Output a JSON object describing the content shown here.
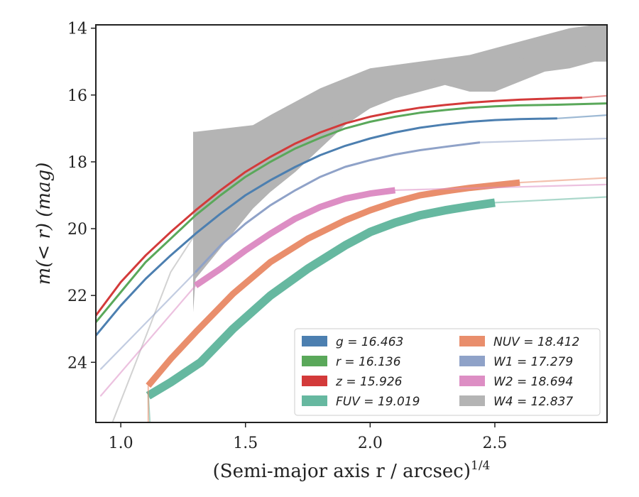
{
  "chart_data": {
    "type": "line",
    "xlabel": "(Semi-major axis r / arcsec)",
    "xlabel_superscript": "1/4",
    "ylabel": "m(< r) (mag)",
    "xlim": [
      0.9,
      2.95
    ],
    "ylim": [
      25.8,
      13.9
    ],
    "y_inverted": true,
    "x_ticks": [
      1.0,
      1.5,
      2.0,
      2.5
    ],
    "x_tick_labels": [
      "1.0",
      "1.5",
      "2.0",
      "2.5"
    ],
    "y_ticks": [
      14,
      16,
      18,
      20,
      22,
      24
    ],
    "y_tick_labels": [
      "14",
      "16",
      "18",
      "20",
      "22",
      "24"
    ],
    "grid": false,
    "legend_placement": "lower-right",
    "series": [
      {
        "name": "g",
        "legend_label": "g = 16.463",
        "color": "#4c7fb0",
        "x": [
          0.9,
          1.0,
          1.1,
          1.2,
          1.3,
          1.4,
          1.5,
          1.6,
          1.7,
          1.8,
          1.9,
          2.0,
          2.1,
          2.2,
          2.3,
          2.4,
          2.5,
          2.6,
          2.75
        ],
        "y": [
          23.2,
          22.3,
          21.5,
          20.8,
          20.15,
          19.55,
          19.0,
          18.55,
          18.15,
          17.8,
          17.52,
          17.3,
          17.12,
          16.98,
          16.88,
          16.8,
          16.75,
          16.72,
          16.7
        ],
        "halo_x_end": 2.95,
        "halo_y_end": 16.6
      },
      {
        "name": "r",
        "legend_label": "r = 16.136",
        "color": "#5aa85a",
        "x": [
          0.9,
          1.0,
          1.1,
          1.2,
          1.3,
          1.4,
          1.5,
          1.6,
          1.7,
          1.8,
          1.9,
          2.0,
          2.1,
          2.2,
          2.3,
          2.4,
          2.5,
          2.6,
          2.75,
          2.95
        ],
        "y": [
          22.8,
          21.9,
          21.0,
          20.3,
          19.6,
          19.0,
          18.45,
          18.0,
          17.6,
          17.28,
          17.0,
          16.8,
          16.65,
          16.53,
          16.45,
          16.38,
          16.34,
          16.31,
          16.29,
          16.25
        ],
        "halo_x_end": 2.95,
        "halo_y_end": 16.2
      },
      {
        "name": "z",
        "legend_label": "z = 15.926",
        "color": "#d33a3a",
        "x": [
          0.9,
          1.0,
          1.1,
          1.2,
          1.3,
          1.4,
          1.5,
          1.6,
          1.7,
          1.8,
          1.9,
          2.0,
          2.1,
          2.2,
          2.3,
          2.4,
          2.5,
          2.6,
          2.75,
          2.85
        ],
        "y": [
          22.6,
          21.6,
          20.8,
          20.1,
          19.45,
          18.85,
          18.3,
          17.85,
          17.45,
          17.12,
          16.85,
          16.65,
          16.5,
          16.38,
          16.3,
          16.23,
          16.18,
          16.14,
          16.1,
          16.08
        ],
        "halo_x_end": 2.95,
        "halo_y_end": 16.02
      },
      {
        "name": "FUV",
        "legend_label": "FUV = 19.019",
        "color": "#66b8a0",
        "x": [
          1.11,
          1.2,
          1.32,
          1.45,
          1.6,
          1.75,
          1.9,
          2.0,
          2.1,
          2.2,
          2.3,
          2.4,
          2.5
        ],
        "y": [
          25.0,
          24.6,
          24.0,
          23.0,
          22.0,
          21.2,
          20.5,
          20.1,
          19.82,
          19.6,
          19.45,
          19.33,
          19.22
        ],
        "halo_x_end": 2.95,
        "halo_y_end": 19.05
      },
      {
        "name": "NUV",
        "legend_label": "NUV = 18.412",
        "color": "#e98e6c",
        "x": [
          1.11,
          1.2,
          1.3,
          1.45,
          1.6,
          1.75,
          1.9,
          2.0,
          2.1,
          2.2,
          2.3,
          2.4,
          2.5,
          2.6
        ],
        "y": [
          24.7,
          23.9,
          23.1,
          21.95,
          21.0,
          20.3,
          19.75,
          19.45,
          19.2,
          19.0,
          18.88,
          18.78,
          18.7,
          18.62
        ],
        "halo_x_end": 2.95,
        "halo_y_end": 18.48
      },
      {
        "name": "W1",
        "legend_label": "W1 = 17.279",
        "color": "#8fa2c8",
        "x": [
          1.3,
          1.4,
          1.5,
          1.6,
          1.7,
          1.8,
          1.9,
          2.0,
          2.1,
          2.2,
          2.3,
          2.44
        ],
        "y": [
          21.3,
          20.5,
          19.85,
          19.3,
          18.85,
          18.45,
          18.15,
          17.95,
          17.78,
          17.65,
          17.55,
          17.42
        ],
        "halo_x_end": 2.95,
        "halo_y_end": 17.3
      },
      {
        "name": "W2",
        "legend_label": "W2 = 18.694",
        "color": "#dd8ec4",
        "x": [
          1.3,
          1.4,
          1.5,
          1.6,
          1.7,
          1.8,
          1.9,
          2.0,
          2.1
        ],
        "y": [
          21.7,
          21.2,
          20.65,
          20.15,
          19.7,
          19.35,
          19.1,
          18.95,
          18.85
        ],
        "halo_x_end": 2.95,
        "halo_y_end": 18.68
      },
      {
        "name": "W4",
        "legend_label": "W4 = 12.837",
        "color": "#b4b4b4",
        "band_x": [
          1.29,
          1.3,
          1.53,
          1.6,
          1.7,
          1.8,
          1.9,
          2.0,
          2.1,
          2.2,
          2.3,
          2.4,
          2.5,
          2.6,
          2.7,
          2.8,
          2.9,
          2.95
        ],
        "band_upper": [
          17.1,
          17.1,
          16.9,
          16.6,
          16.2,
          15.8,
          15.5,
          15.2,
          15.1,
          15.0,
          14.9,
          14.8,
          14.6,
          14.4,
          14.2,
          14.0,
          13.9,
          13.9
        ],
        "band_lower": [
          22.5,
          21.5,
          19.4,
          18.9,
          18.3,
          17.6,
          16.9,
          16.4,
          16.1,
          15.9,
          15.7,
          15.9,
          15.9,
          15.6,
          15.3,
          15.2,
          15.0,
          15.0
        ]
      }
    ]
  }
}
